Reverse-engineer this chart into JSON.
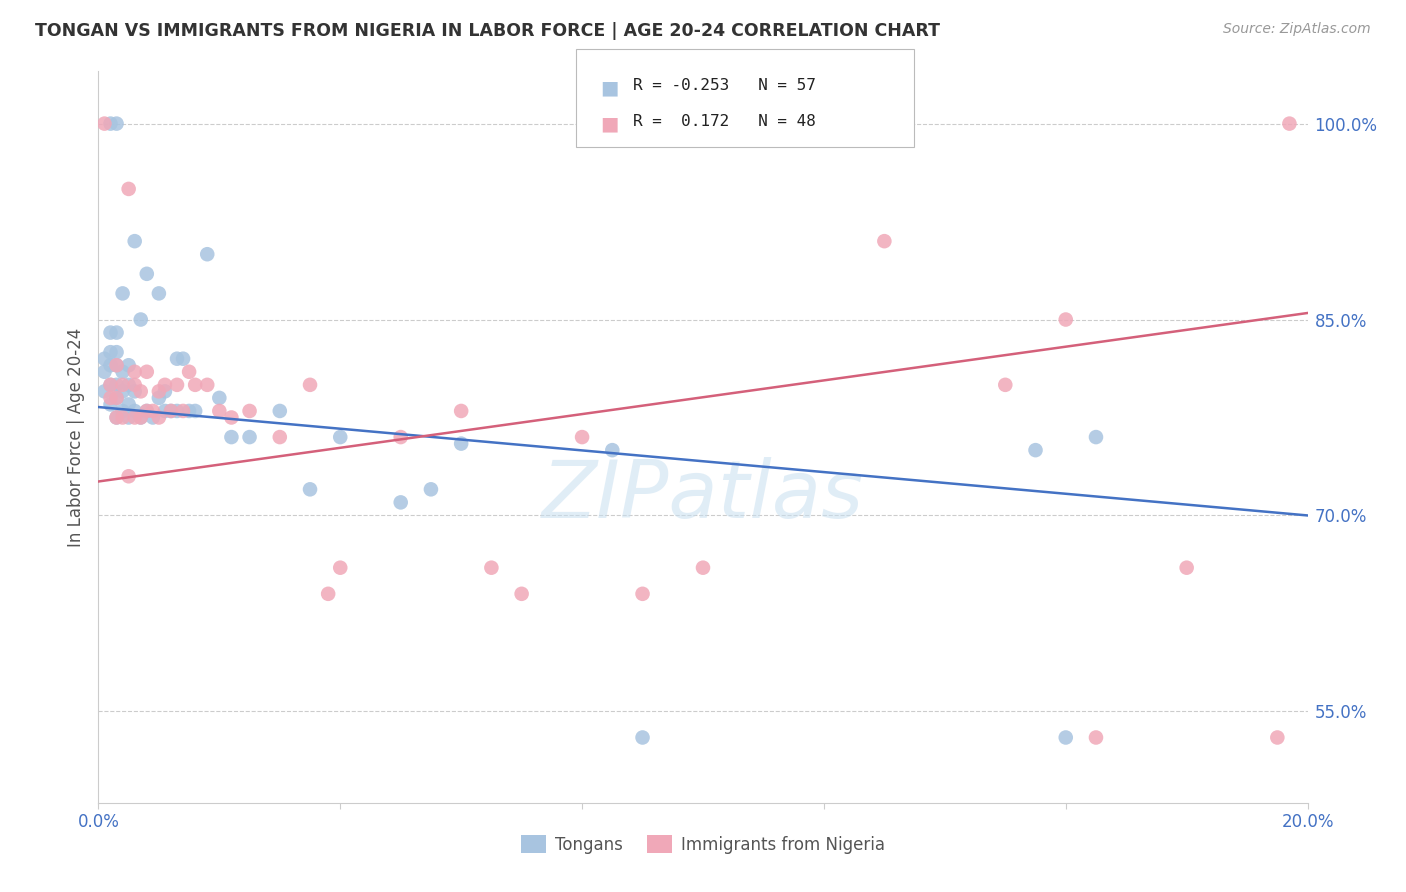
{
  "title": "TONGAN VS IMMIGRANTS FROM NIGERIA IN LABOR FORCE | AGE 20-24 CORRELATION CHART",
  "source": "Source: ZipAtlas.com",
  "ylabel": "In Labor Force | Age 20-24",
  "legend_label_blue": "Tongans",
  "legend_label_pink": "Immigrants from Nigeria",
  "blue_color": "#a8c4e0",
  "pink_color": "#f0a8b8",
  "line_blue_color": "#4472c4",
  "line_pink_color": "#d4607a",
  "watermark": "ZIPatlas",
  "blue_line_x0": 0.0,
  "blue_line_y0": 0.783,
  "blue_line_x1": 0.2,
  "blue_line_y1": 0.7,
  "pink_line_x0": 0.0,
  "pink_line_y0": 0.726,
  "pink_line_x1": 0.2,
  "pink_line_y1": 0.855,
  "ylim_min": 0.48,
  "ylim_max": 1.04,
  "xlim_min": 0.0,
  "xlim_max": 0.2,
  "y_ticks": [
    0.55,
    0.7,
    0.85,
    1.0
  ],
  "y_tick_labels": [
    "55.0%",
    "70.0%",
    "85.0%",
    "100.0%"
  ],
  "x_tick_labels": [
    "0.0%",
    "",
    "",
    "",
    "",
    "20.0%"
  ],
  "blue_x": [
    0.001,
    0.001,
    0.001,
    0.002,
    0.002,
    0.002,
    0.002,
    0.002,
    0.002,
    0.003,
    0.003,
    0.003,
    0.003,
    0.003,
    0.003,
    0.003,
    0.004,
    0.004,
    0.004,
    0.004,
    0.005,
    0.005,
    0.005,
    0.005,
    0.006,
    0.006,
    0.006,
    0.007,
    0.007,
    0.008,
    0.008,
    0.009,
    0.01,
    0.01,
    0.011,
    0.011,
    0.012,
    0.013,
    0.013,
    0.014,
    0.015,
    0.016,
    0.018,
    0.02,
    0.022,
    0.025,
    0.03,
    0.035,
    0.04,
    0.05,
    0.055,
    0.06,
    0.085,
    0.09,
    0.155,
    0.16,
    0.165
  ],
  "blue_y": [
    0.795,
    0.81,
    0.82,
    0.785,
    0.8,
    0.815,
    0.825,
    0.84,
    1.0,
    0.775,
    0.79,
    0.8,
    0.815,
    0.825,
    0.84,
    1.0,
    0.78,
    0.795,
    0.81,
    0.87,
    0.775,
    0.785,
    0.8,
    0.815,
    0.78,
    0.795,
    0.91,
    0.775,
    0.85,
    0.78,
    0.885,
    0.775,
    0.79,
    0.87,
    0.78,
    0.795,
    0.78,
    0.78,
    0.82,
    0.82,
    0.78,
    0.78,
    0.9,
    0.79,
    0.76,
    0.76,
    0.78,
    0.72,
    0.76,
    0.71,
    0.72,
    0.755,
    0.75,
    0.53,
    0.75,
    0.53,
    0.76
  ],
  "pink_x": [
    0.001,
    0.002,
    0.002,
    0.003,
    0.003,
    0.003,
    0.004,
    0.004,
    0.005,
    0.005,
    0.006,
    0.006,
    0.006,
    0.007,
    0.007,
    0.008,
    0.008,
    0.009,
    0.01,
    0.01,
    0.011,
    0.012,
    0.013,
    0.014,
    0.015,
    0.016,
    0.018,
    0.02,
    0.022,
    0.025,
    0.03,
    0.035,
    0.038,
    0.04,
    0.05,
    0.06,
    0.065,
    0.07,
    0.08,
    0.09,
    0.1,
    0.13,
    0.15,
    0.16,
    0.165,
    0.18,
    0.195,
    0.197
  ],
  "pink_y": [
    1.0,
    0.8,
    0.79,
    0.775,
    0.79,
    0.815,
    0.775,
    0.8,
    0.73,
    0.95,
    0.775,
    0.8,
    0.81,
    0.775,
    0.795,
    0.78,
    0.81,
    0.78,
    0.775,
    0.795,
    0.8,
    0.78,
    0.8,
    0.78,
    0.81,
    0.8,
    0.8,
    0.78,
    0.775,
    0.78,
    0.76,
    0.8,
    0.64,
    0.66,
    0.76,
    0.78,
    0.66,
    0.64,
    0.76,
    0.64,
    0.66,
    0.91,
    0.8,
    0.85,
    0.53,
    0.66,
    0.53,
    1.0
  ]
}
